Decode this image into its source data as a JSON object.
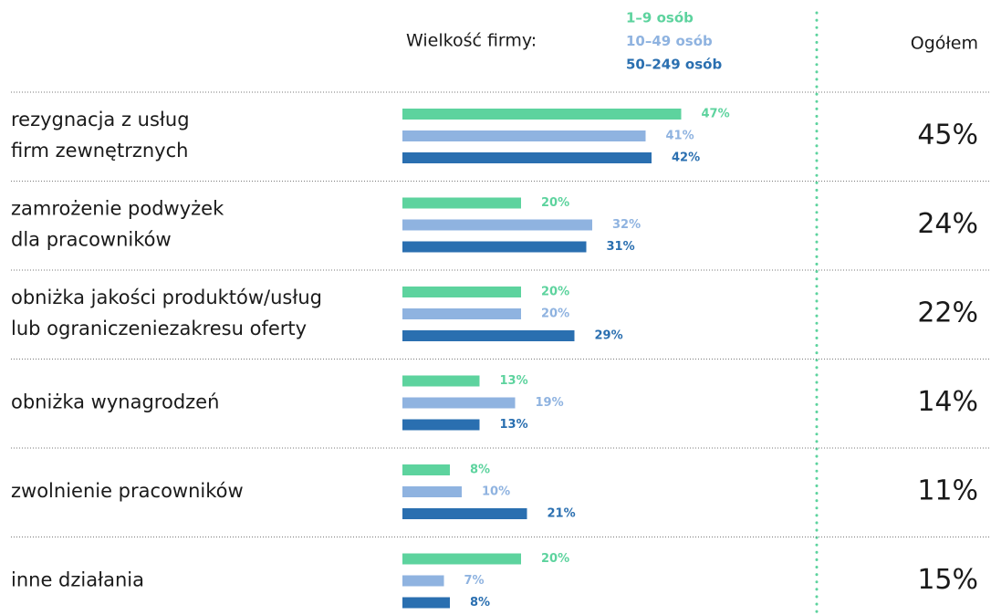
{
  "chart_data": {
    "type": "bar",
    "orientation": "horizontal",
    "legend_title": "Wielkość firmy:",
    "categories": [
      [
        "rezygnacja z usług",
        "firm zewnętrznych"
      ],
      [
        "zamrożenie podwyżek",
        "dla pracowników"
      ],
      [
        "obniżka jakości produktów/usług",
        "lub ograniczeniezakresu oferty"
      ],
      [
        "obniżka wynagrodzeń"
      ],
      [
        "zwolnienie pracowników"
      ],
      [
        "inne działania"
      ]
    ],
    "series": [
      {
        "name": "1–9 osób",
        "color": "#5dd39e",
        "values": [
          47,
          20,
          20,
          13,
          8,
          20
        ],
        "value_labels": [
          "47%",
          "20%",
          "20%",
          "13%",
          "8%",
          "20%"
        ]
      },
      {
        "name": "10–49 osób",
        "color": "#8fb3e0",
        "values": [
          41,
          32,
          20,
          19,
          10,
          7
        ],
        "value_labels": [
          "41%",
          "32%",
          "20%",
          "19%",
          "10%",
          "7%"
        ]
      },
      {
        "name": "50–249 osób",
        "color": "#2a6fb0",
        "values": [
          42,
          31,
          29,
          13,
          21,
          8
        ],
        "value_labels": [
          "42%",
          "31%",
          "29%",
          "13%",
          "21%",
          "8%"
        ]
      }
    ],
    "totals": {
      "name": "Ogółem",
      "values": [
        45,
        24,
        22,
        14,
        11,
        15
      ],
      "value_labels": [
        "45%",
        "24%",
        "22%",
        "14%",
        "11%",
        "15%"
      ]
    }
  }
}
